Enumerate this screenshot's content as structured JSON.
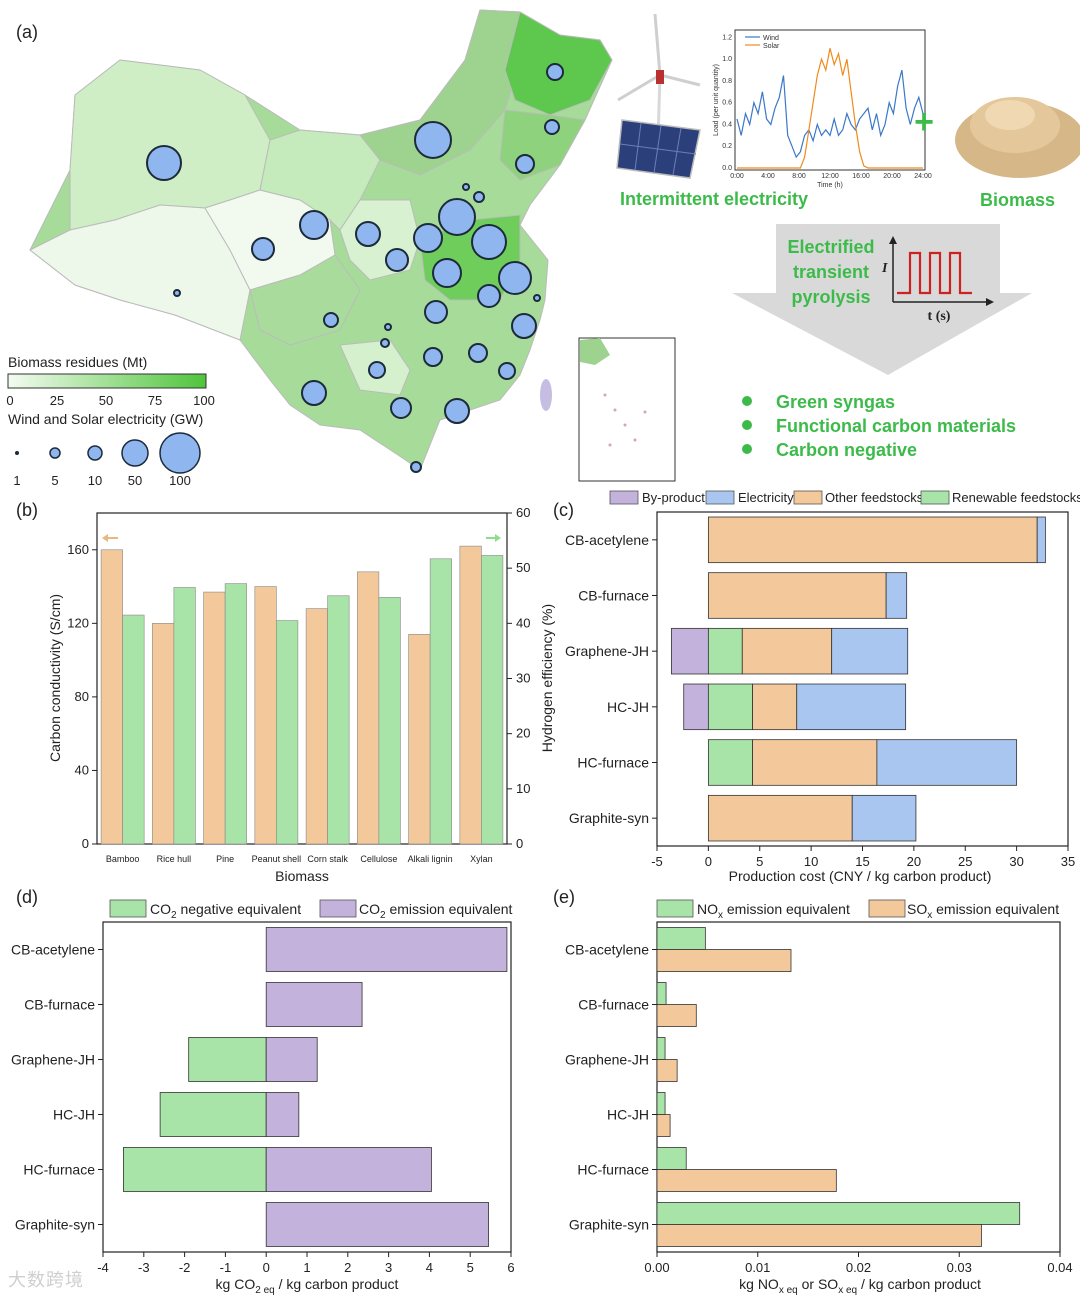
{
  "colors": {
    "orange": "#f3c99c",
    "green": "#a8e4a8",
    "blue": "#a9c6f1",
    "purple": "#c3b2dc",
    "circle": "#8fb6ef",
    "accent_green": "#3dbb4a",
    "wind": "#3a78c8",
    "solar": "#f08a1c",
    "pulse": "#cc2222"
  },
  "panel_a": {
    "label": "(a)",
    "biomass_legend_title": "Biomass residues (Mt)",
    "biomass_ticks": [
      "0",
      "25",
      "50",
      "75",
      "100"
    ],
    "circle_legend_title": "Wind and Solar electricity (GW)",
    "circle_sizes": [
      "1",
      "5",
      "10",
      "50",
      "100"
    ],
    "load_chart": {
      "ylabel": "Load (per unit quantity)",
      "xlabel": "Time (h)",
      "legend": [
        "Wind",
        "Solar"
      ],
      "x_ticks": [
        "0:00",
        "4:00",
        "8:00",
        "12:00",
        "16:00",
        "20:00",
        "24:00"
      ],
      "y_ticks": [
        "0.0",
        "0.2",
        "0.4",
        "0.6",
        "0.8",
        "1.0",
        "1.2"
      ],
      "wind_values": [
        0.45,
        0.3,
        0.5,
        0.4,
        0.6,
        0.5,
        0.7,
        0.45,
        0.4,
        0.55,
        0.65,
        0.85,
        0.3,
        0.2,
        0.1,
        0.15,
        0.3,
        0.35,
        0.25,
        0.4,
        0.3,
        0.35,
        0.3,
        0.45,
        0.3,
        0.35,
        0.5,
        0.4,
        0.35,
        0.45,
        0.5,
        0.55,
        0.35,
        0.5,
        0.3,
        0.4,
        0.6,
        0.5,
        0.75,
        0.9,
        0.55,
        0.4,
        0.55,
        0.65,
        0.5
      ],
      "solar_values": [
        0,
        0,
        0,
        0,
        0,
        0,
        0,
        0,
        0,
        0,
        0,
        0,
        0,
        0,
        0,
        0,
        0.1,
        0.35,
        0.6,
        0.85,
        1.0,
        0.9,
        1.1,
        0.95,
        1.05,
        0.85,
        1.0,
        0.7,
        0.4,
        0.15,
        0.02,
        0,
        0,
        0,
        0,
        0,
        0,
        0,
        0,
        0,
        0,
        0,
        0,
        0,
        0
      ]
    },
    "intermittent_label": "Intermittent electricity",
    "biomass_label": "Biomass",
    "process_label": [
      "Electrified",
      "transient",
      "pyrolysis"
    ],
    "pulse_ylabel": "I",
    "pulse_xlabel": "t (s)",
    "outcomes": [
      "Green syngas",
      "Functional carbon materials",
      "Carbon negative"
    ]
  },
  "chart_data": [
    {
      "type": "bar",
      "panel": "(b)",
      "xlabel": "Biomass",
      "ylabel": "Carbon conductivity (S/cm)",
      "y2label": "Hydrogen efficiency (%)",
      "categories": [
        "Bamboo",
        "Rice hull",
        "Pine",
        "Peanut shell",
        "Corn stalk",
        "Cellulose",
        "Alkali lignin",
        "Xylan"
      ],
      "series": [
        {
          "name": "Carbon conductivity",
          "axis": "left",
          "values": [
            160,
            120,
            137,
            140,
            128,
            148,
            114,
            162
          ]
        },
        {
          "name": "Hydrogen efficiency",
          "axis": "right",
          "values": [
            41.5,
            46.5,
            47.2,
            40.5,
            45,
            44.7,
            51.7,
            52.3
          ]
        }
      ],
      "ylim": [
        0,
        180
      ],
      "y2lim": [
        0,
        60
      ],
      "y_ticks": [
        "0",
        "40",
        "80",
        "120",
        "160"
      ],
      "y2_ticks": [
        "0",
        "10",
        "20",
        "30",
        "40",
        "50",
        "60"
      ]
    },
    {
      "type": "bar",
      "orientation": "horizontal-stacked",
      "panel": "(c)",
      "xlabel": "Production cost (CNY / kg carbon product)",
      "categories": [
        "CB-acetylene",
        "CB-furnace",
        "Graphene-JH",
        "HC-JH",
        "HC-furnace",
        "Graphite-syn"
      ],
      "legend": [
        "By-product",
        "Electricity",
        "Other feedstocks",
        "Renewable feedstocks"
      ],
      "series": [
        {
          "name": "By-product",
          "values": [
            0,
            0,
            -3.6,
            -2.4,
            0,
            0
          ]
        },
        {
          "name": "Renewable feedstocks",
          "values": [
            0,
            0,
            3.3,
            4.3,
            4.3,
            0
          ]
        },
        {
          "name": "Other feedstocks",
          "values": [
            32.0,
            17.3,
            8.7,
            4.3,
            12.1,
            14.0
          ]
        },
        {
          "name": "Electricity",
          "values": [
            0.8,
            2.0,
            7.4,
            10.6,
            13.6,
            6.2
          ]
        }
      ],
      "xlim": [
        -5,
        35
      ],
      "x_ticks": [
        "-5",
        "0",
        "5",
        "10",
        "15",
        "20",
        "25",
        "30",
        "35"
      ]
    },
    {
      "type": "bar",
      "orientation": "horizontal",
      "panel": "(d)",
      "xlabel": "kg CO2 eq / kg carbon product",
      "categories": [
        "CB-acetylene",
        "CB-furnace",
        "Graphene-JH",
        "HC-JH",
        "HC-furnace",
        "Graphite-syn"
      ],
      "legend": [
        "CO2 negative equivalent",
        "CO2 emission equivalent"
      ],
      "series": [
        {
          "name": "CO2 negative equivalent",
          "values": [
            0,
            0,
            -1.9,
            -2.6,
            -3.5,
            0
          ]
        },
        {
          "name": "CO2 emission equivalent",
          "values": [
            5.9,
            2.35,
            1.25,
            0.8,
            4.05,
            5.45
          ]
        }
      ],
      "xlim": [
        -4,
        6
      ],
      "x_ticks": [
        "-4",
        "-3",
        "-2",
        "-1",
        "0",
        "1",
        "2",
        "3",
        "4",
        "5",
        "6"
      ]
    },
    {
      "type": "bar",
      "orientation": "horizontal-grouped",
      "panel": "(e)",
      "xlabel": "kg NOx eq or SOx eq / kg carbon product",
      "categories": [
        "CB-acetylene",
        "CB-furnace",
        "Graphene-JH",
        "HC-JH",
        "HC-furnace",
        "Graphite-syn"
      ],
      "legend": [
        "NOx emission equivalent",
        "SOx emission equivalent"
      ],
      "series": [
        {
          "name": "NOx emission equivalent",
          "values": [
            0.0048,
            0.0009,
            0.0008,
            0.0008,
            0.0029,
            0.036
          ]
        },
        {
          "name": "SOx emission equivalent",
          "values": [
            0.0133,
            0.0039,
            0.002,
            0.0013,
            0.0178,
            0.0322
          ]
        }
      ],
      "xlim": [
        0,
        0.04
      ],
      "x_ticks": [
        "0.00",
        "0.01",
        "0.02",
        "0.03",
        "0.04"
      ]
    }
  ],
  "labels": {
    "b_bars": "Bamboo",
    "d_neg_prefix": "CO",
    "d_neg_sub": "2",
    "d_neg_suffix": " negative equivalent",
    "d_pos_suffix": " emission equivalent",
    "d_x_prefix": "kg CO",
    "d_x_sub": "2 eq",
    "d_x_suffix": " / kg carbon product",
    "e_nox_prefix": "NO",
    "e_x_sub": "x",
    "e_sox_prefix": "SO",
    "e_leg_suffix": " emission equivalent",
    "e_x_a": "kg NO",
    "e_x_sub_eq": "x eq",
    "e_x_b": " or SO",
    "e_x_c": " / kg carbon product"
  },
  "watermark": "大数跨境"
}
